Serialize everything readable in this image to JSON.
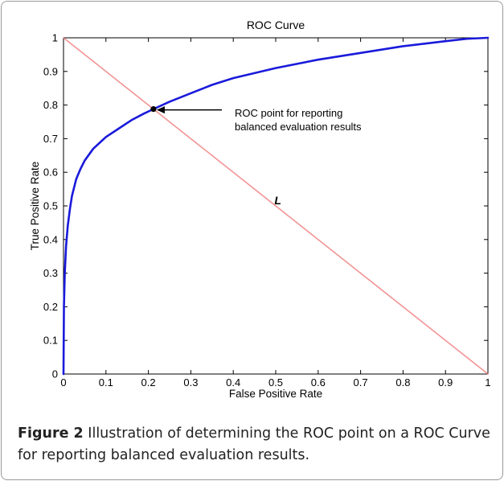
{
  "caption": {
    "label": "Figure 2",
    "text": "Illustration of determining the ROC point on a ROC Curve for reporting balanced evaluation results."
  },
  "chart_data": {
    "type": "line",
    "title": "ROC Curve",
    "xlabel": "False Positive Rate",
    "ylabel": "True Positive Rate",
    "xlim": [
      0,
      1
    ],
    "ylim": [
      0,
      1
    ],
    "xticks": [
      "0",
      "0.1",
      "0.2",
      "0.3",
      "0.4",
      "0.5",
      "0.6",
      "0.7",
      "0.8",
      "0.9",
      "1"
    ],
    "yticks": [
      "0",
      "0.1",
      "0.2",
      "0.3",
      "0.4",
      "0.5",
      "0.6",
      "0.7",
      "0.8",
      "0.9",
      "1"
    ],
    "grid": false,
    "series": [
      {
        "color": "#1a1adb",
        "x": [
          0,
          0.001,
          0.003,
          0.006,
          0.01,
          0.015,
          0.02,
          0.03,
          0.04,
          0.05,
          0.07,
          0.1,
          0.13,
          0.16,
          0.19,
          0.212,
          0.25,
          0.3,
          0.35,
          0.4,
          0.45,
          0.5,
          0.6,
          0.7,
          0.8,
          0.9,
          0.95,
          1
        ],
        "y": [
          0,
          0.2,
          0.3,
          0.38,
          0.44,
          0.49,
          0.53,
          0.58,
          0.61,
          0.635,
          0.67,
          0.705,
          0.73,
          0.755,
          0.775,
          0.788,
          0.81,
          0.835,
          0.86,
          0.88,
          0.895,
          0.91,
          0.935,
          0.955,
          0.975,
          0.99,
          0.997,
          1
        ]
      },
      {
        "name": "L",
        "color": "#f08080",
        "x": [
          0,
          1
        ],
        "y": [
          1,
          0
        ]
      }
    ],
    "marker": {
      "x": 0.212,
      "y": 0.788,
      "color": "#000000"
    },
    "annotations": [
      {
        "text": "ROC point for reporting\nbalanced evaluation results",
        "arrow_to": [
          0.212,
          0.788
        ]
      },
      {
        "text": "L",
        "style": "bold-italic"
      }
    ]
  }
}
